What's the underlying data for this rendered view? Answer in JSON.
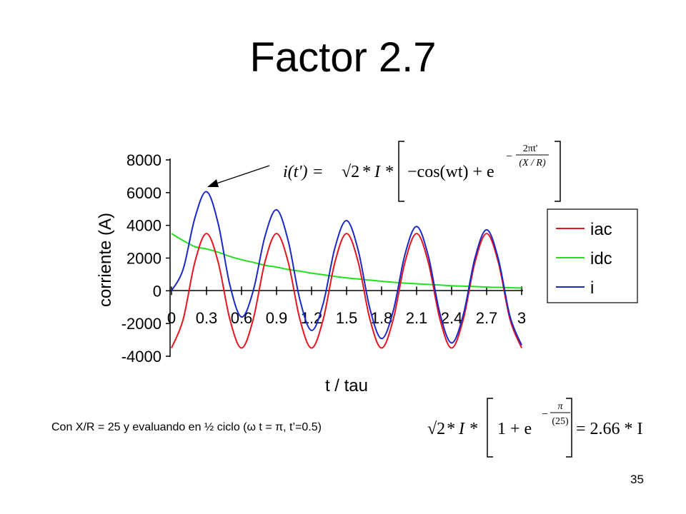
{
  "slide": {
    "title": "Factor 2.7",
    "caption": "Con X/R = 25 y evaluando en ½ ciclo (ω t = π, t’=0.5)",
    "page_number": "35"
  },
  "formulas": {
    "top": {
      "lhs": "i(t') = ",
      "sqrt2": "√2",
      "star_I": "* I *",
      "cos_term": "−cos(wt) + e",
      "exp_num": "2πt'",
      "exp_den": "(X / R)",
      "exp_minus": "−"
    },
    "bottom": {
      "sqrt2": "√2",
      "star_I": "* I *",
      "one_plus_e": "1 + e",
      "exp_minus": "−",
      "exp_num": "π",
      "exp_den": "(25)",
      "result": "= 2.66 * I"
    }
  },
  "colors": {
    "iac": "#e8141e",
    "idc": "#22e020",
    "i": "#1a28c8",
    "axis": "#000000"
  },
  "chart_data": {
    "type": "line",
    "title": "",
    "xlabel": "t / tau",
    "ylabel": "corriente (A)",
    "xlim": [
      0,
      3
    ],
    "ylim": [
      -4000,
      8000
    ],
    "x_ticks": [
      "0",
      "0.3",
      "0.6",
      "0.9",
      "1.2",
      "1.5",
      "1.8",
      "2.1",
      "2.4",
      "2.7",
      "3"
    ],
    "y_ticks": [
      "8000",
      "6000",
      "4000",
      "2000",
      "0",
      "-2000",
      "-4000"
    ],
    "y_tick_values": [
      8000,
      6000,
      4000,
      2000,
      0,
      -2000,
      -4000
    ],
    "legend_position": "right",
    "grid": false,
    "x": [
      0,
      0.1,
      0.2,
      0.3,
      0.4,
      0.5,
      0.6,
      0.7,
      0.8,
      0.9,
      1.0,
      1.1,
      1.2,
      1.3,
      1.4,
      1.5,
      1.6,
      1.7,
      1.8,
      1.9,
      2.0,
      2.1,
      2.2,
      2.3,
      2.4,
      2.5,
      2.6,
      2.7,
      2.8,
      2.9,
      3.0
    ],
    "series": [
      {
        "name": "iac",
        "values": [
          -3500,
          -1750,
          1750,
          3500,
          1750,
          -1750,
          -3500,
          -1750,
          1750,
          3500,
          1750,
          -1750,
          -3500,
          -1750,
          1750,
          3500,
          1750,
          -1750,
          -3500,
          -1750,
          1750,
          3500,
          1750,
          -1750,
          -3500,
          -1750,
          1750,
          3500,
          1750,
          -1750,
          -3500
        ]
      },
      {
        "name": "idc",
        "values": [
          3500,
          3070,
          2700,
          2560,
          2360,
          2100,
          1900,
          1740,
          1560,
          1450,
          1300,
          1200,
          1080,
          980,
          880,
          790,
          720,
          650,
          580,
          520,
          470,
          430,
          390,
          350,
          310,
          280,
          260,
          230,
          210,
          190,
          170
        ]
      },
      {
        "name": "i",
        "values": [
          0,
          1320,
          4450,
          6060,
          4110,
          350,
          -1600,
          -10,
          3310,
          4950,
          3050,
          -550,
          -2420,
          -770,
          2630,
          4290,
          2470,
          -1100,
          -2920,
          -1230,
          2220,
          3930,
          2140,
          -1400,
          -3190,
          -1470,
          2010,
          3730,
          1960,
          -1560,
          -3330
        ]
      }
    ]
  }
}
